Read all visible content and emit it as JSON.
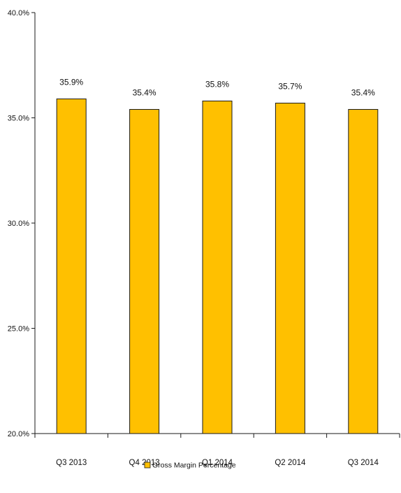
{
  "chart_data": {
    "type": "bar",
    "categories": [
      "Q3 2013",
      "Q4 2013",
      "Q1 2014",
      "Q2 2014",
      "Q3 2014"
    ],
    "series": [
      {
        "name": "Gross Margin Percentage",
        "values": [
          35.9,
          35.4,
          35.8,
          35.7,
          35.4
        ],
        "labels": [
          "35.9%",
          "35.4%",
          "35.8%",
          "35.7%",
          "35.4%"
        ],
        "color": "#FFC000",
        "border_color": "#1a1a1a"
      }
    ],
    "ylim": [
      20,
      40
    ],
    "y_ticks": [
      20,
      25,
      30,
      35,
      40
    ],
    "y_tick_labels": [
      "20.0%",
      "25.0%",
      "30.0%",
      "35.0%",
      "40.0%"
    ],
    "legend_position": "bottom",
    "grid": false
  }
}
